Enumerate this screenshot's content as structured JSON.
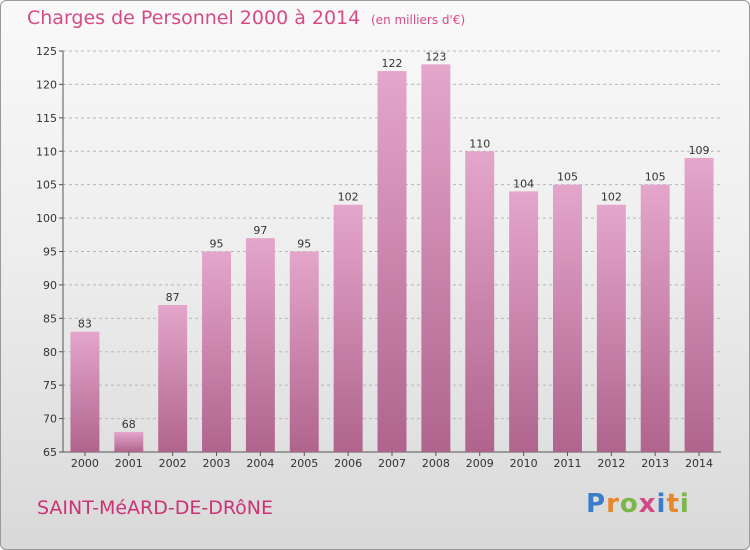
{
  "title": "Charges de Personnel 2000 à 2014",
  "subtitle": "(en milliers d'€)",
  "commune": "SAINT-MéARD-DE-DRôNE",
  "logo": {
    "text": "Proxiti",
    "letter_colors": [
      "#3a7ec8",
      "#e8862a",
      "#7ab648",
      "#d24a86",
      "#3a7ec8",
      "#e8862a",
      "#7ab648"
    ]
  },
  "colors": {
    "title": "#d84a86",
    "bar_top": "#e4a6cb",
    "bar_bottom": "#b0648c",
    "grid": "#b8b8b8"
  },
  "chart_data": {
    "type": "bar",
    "categories": [
      "2000",
      "2001",
      "2002",
      "2003",
      "2004",
      "2005",
      "2006",
      "2007",
      "2008",
      "2009",
      "2010",
      "2011",
      "2012",
      "2013",
      "2014"
    ],
    "values": [
      83,
      68,
      87,
      95,
      97,
      95,
      102,
      122,
      123,
      110,
      104,
      105,
      102,
      105,
      109
    ],
    "ylim": [
      65,
      125
    ],
    "yticks": [
      65,
      70,
      75,
      80,
      85,
      90,
      95,
      100,
      105,
      110,
      115,
      120,
      125
    ],
    "grid": true,
    "title": "Charges de Personnel 2000 à 2014",
    "xlabel": "",
    "ylabel": ""
  }
}
